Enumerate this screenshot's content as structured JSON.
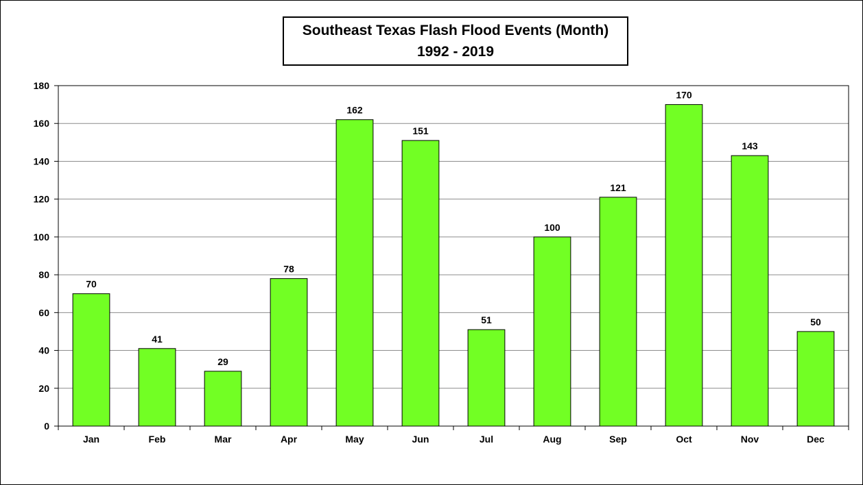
{
  "chart_data": {
    "type": "bar",
    "title": "Southeast Texas Flash Flood Events (Month)",
    "subtitle": "1992 - 2019",
    "categories": [
      "Jan",
      "Feb",
      "Mar",
      "Apr",
      "May",
      "Jun",
      "Jul",
      "Aug",
      "Sep",
      "Oct",
      "Nov",
      "Dec"
    ],
    "values": [
      70,
      41,
      29,
      78,
      162,
      151,
      51,
      100,
      121,
      170,
      143,
      50
    ],
    "ylim": [
      0,
      180
    ],
    "yticks": [
      0,
      20,
      40,
      60,
      80,
      100,
      120,
      140,
      160,
      180
    ],
    "xlabel": "",
    "ylabel": "",
    "grid": true,
    "data_labels": true,
    "bar_color": "#72FF24",
    "legend": "none"
  }
}
